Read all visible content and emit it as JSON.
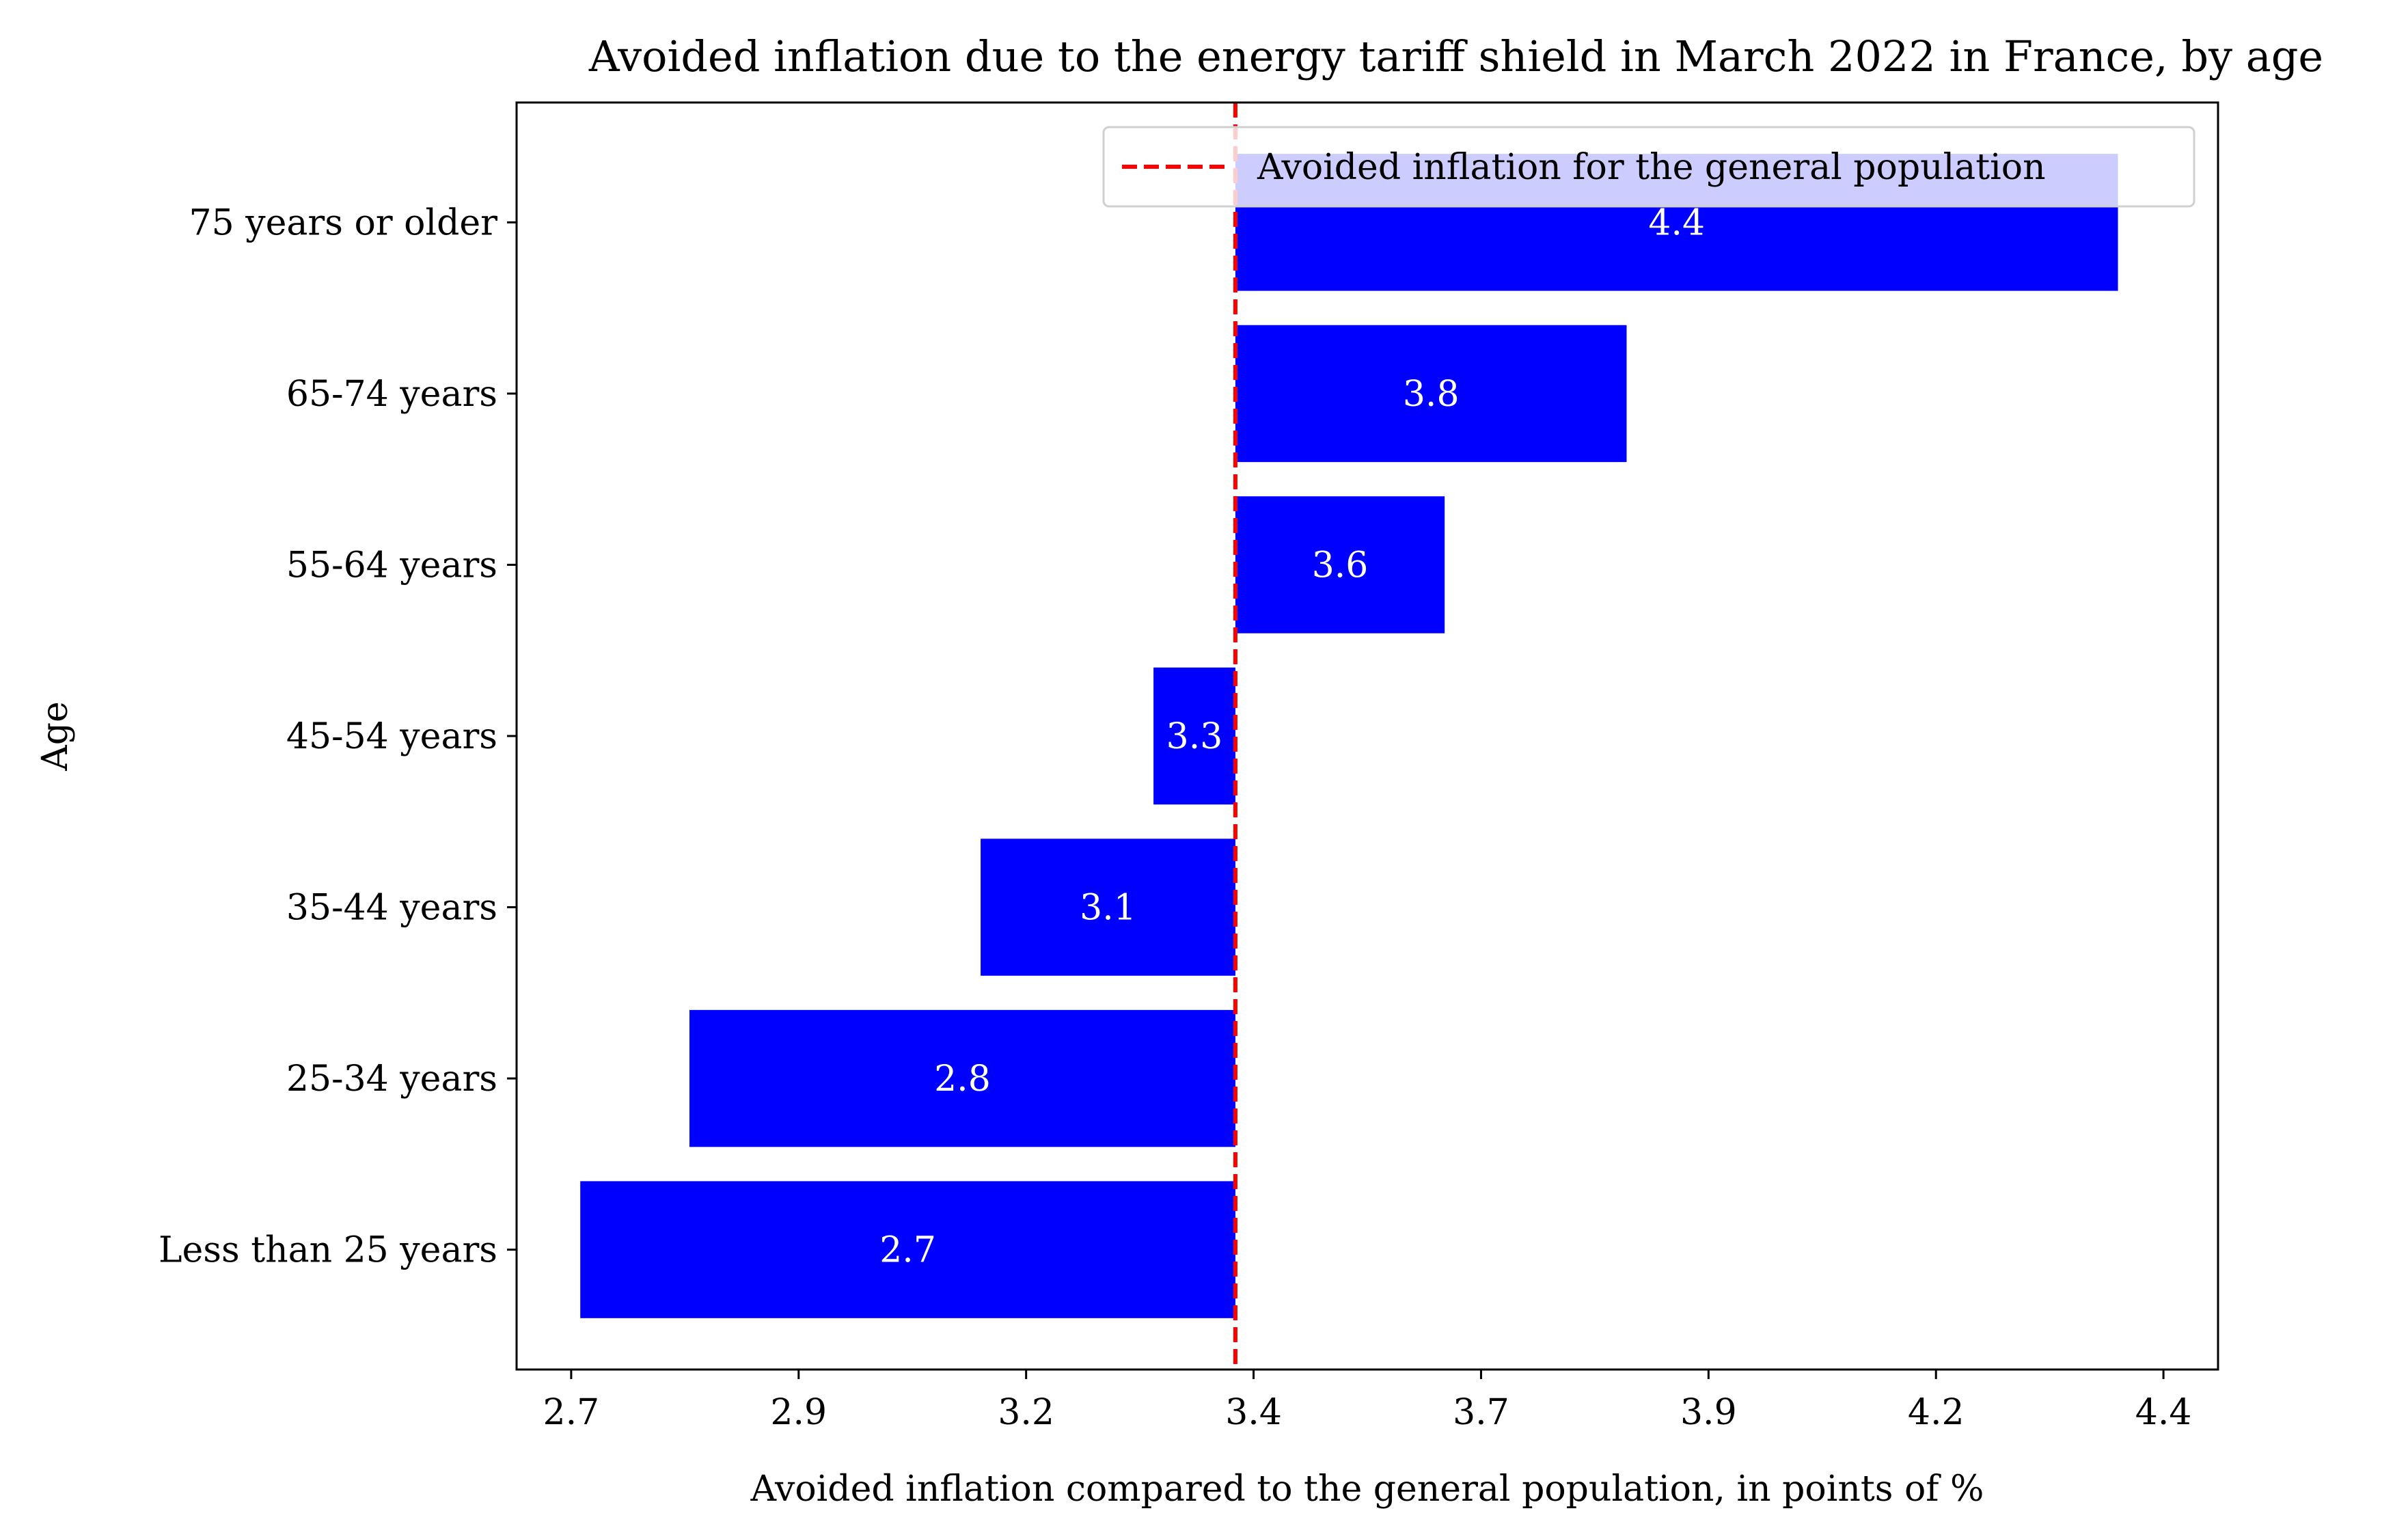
{
  "chart_data": {
    "type": "bar",
    "orientation": "horizontal",
    "title": "Avoided inflation due to the energy tariff shield in March 2022 in France, by age",
    "xlabel": "Avoided inflation compared to the general population, in points of %",
    "ylabel": "Age",
    "categories": [
      "Less than 25 years",
      "25-34 years",
      "35-44 years",
      "45-54 years",
      "55-64 years",
      "65-74 years",
      "75 years or older"
    ],
    "values": [
      2.68,
      2.8,
      3.12,
      3.31,
      3.63,
      3.83,
      4.37
    ],
    "data_labels": [
      "2.7",
      "2.8",
      "3.1",
      "3.3",
      "3.6",
      "3.8",
      "4.4"
    ],
    "baseline": 3.4,
    "xlim": [
      2.61,
      4.48
    ],
    "xticks": [
      2.67,
      2.92,
      3.17,
      3.42,
      3.67,
      3.92,
      4.17,
      4.42
    ],
    "xtick_labels": [
      "2.7",
      "2.9",
      "3.2",
      "3.4",
      "3.7",
      "3.9",
      "4.2",
      "4.4"
    ],
    "reference_line": {
      "value": 3.4,
      "label": "Avoided inflation for the general population",
      "style": "dashed",
      "color": "#ff0000"
    },
    "legend_position": "upper right",
    "bar_color": "#0000ff",
    "grid": false
  }
}
